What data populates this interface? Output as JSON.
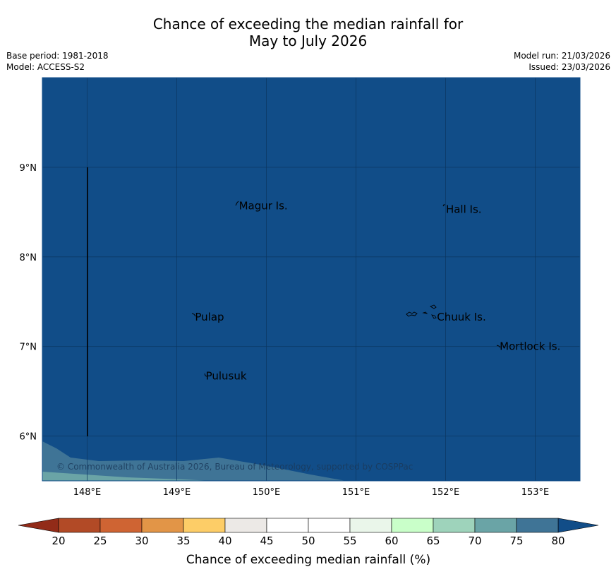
{
  "title_line1": "Chance of exceeding the median rainfall for",
  "title_line2": "May to July 2026",
  "meta_left": {
    "base_period": "Base period: 1981-2018",
    "model": "Model: ACCESS-S2"
  },
  "meta_right": {
    "model_run": "Model run: 21/03/2026",
    "issued": "Issued: 23/03/2026"
  },
  "map": {
    "lon_range": [
      147.5,
      153.5
    ],
    "lat_range": [
      5.5,
      10.0
    ],
    "lon_ticks": [
      148,
      149,
      150,
      151,
      152,
      153
    ],
    "lon_tick_labels": [
      "148°E",
      "149°E",
      "150°E",
      "151°E",
      "152°E",
      "153°E"
    ],
    "lat_ticks": [
      6,
      7,
      8,
      9
    ],
    "lat_tick_labels": [
      "6°N",
      "7°N",
      "8°N",
      "9°N"
    ],
    "background_color": "#114d88",
    "places": [
      {
        "name": "Magur Is.",
        "lon": 149.67,
        "lat": 8.57
      },
      {
        "name": "Hall Is.",
        "lon": 151.98,
        "lat": 8.53
      },
      {
        "name": "Pulap",
        "lon": 149.18,
        "lat": 7.33
      },
      {
        "name": "Chuuk Is.",
        "lon": 151.88,
        "lat": 7.33
      },
      {
        "name": "Mortlock Is.",
        "lon": 152.58,
        "lat": 7.0
      },
      {
        "name": "Pulusuk",
        "lon": 149.3,
        "lat": 6.67
      }
    ],
    "copyright": "© Commonwealth of Australia 2026, Bureau of Meteorology, supported by COSPPac"
  },
  "colorbar": {
    "label": "Chance of exceeding median rainfall (%)",
    "ticks": [
      "20",
      "25",
      "30",
      "35",
      "40",
      "45",
      "50",
      "55",
      "60",
      "65",
      "70",
      "75",
      "80"
    ],
    "colors": [
      "#b24a26",
      "#cf6433",
      "#e29547",
      "#fdcd67",
      "#ece9e6",
      "#ffffff",
      "#ffffff",
      "#eaf6ea",
      "#c9ffc9",
      "#9ed3bb",
      "#6aa4a6",
      "#3f7496"
    ],
    "under_color": "#922b18",
    "over_color": "#114d88"
  }
}
